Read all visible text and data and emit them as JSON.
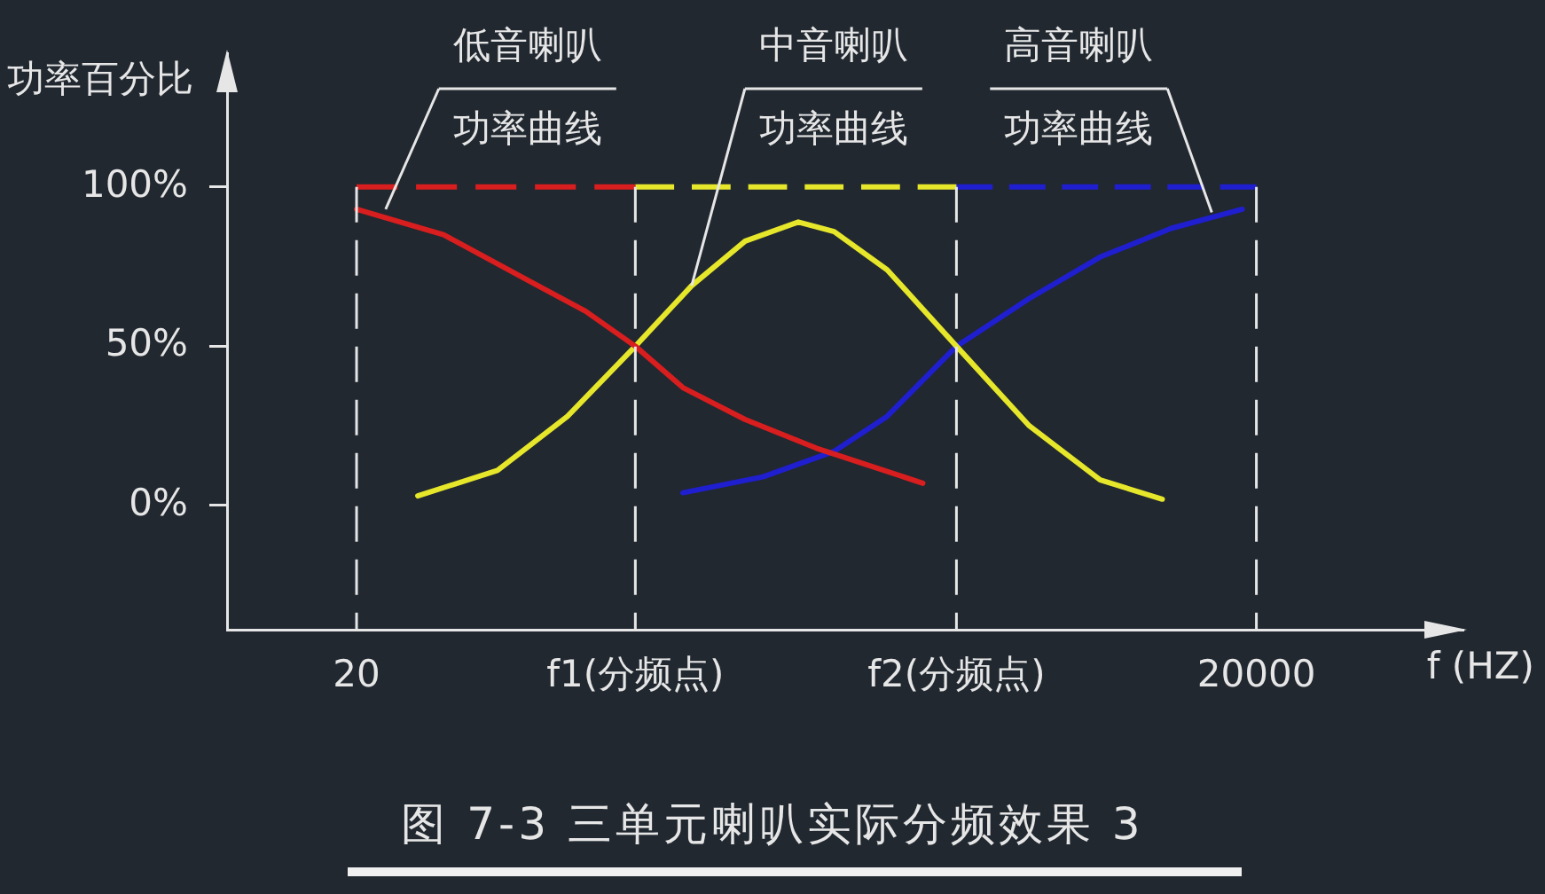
{
  "chart_data": {
    "type": "line",
    "title": "图 7-3  三单元喇叭实际分频效果 3",
    "xlabel": "f (HZ)",
    "ylabel": "功率百分比",
    "log": "x",
    "xlim": [
      7.4,
      98000
    ],
    "xticks": [
      20,
      {
        "value": 170,
        "label": "f1(分频点)"
      },
      {
        "value": 2000,
        "label": "f2(分频点)"
      },
      20000
    ],
    "ylim": [
      -39,
      142
    ],
    "yticks": [
      {
        "value": 0,
        "label": "0%"
      },
      {
        "value": 50,
        "label": "50%"
      },
      {
        "value": 100,
        "label": "100%"
      }
    ],
    "grid": "x",
    "legend": false,
    "marker": "none",
    "line_style": "solid",
    "series": [
      {
        "color": "#d81e1e",
        "x": [
          20,
          39,
          77,
          116,
          170,
          245,
          395,
          682,
          1545
        ],
        "values": [
          93,
          85,
          70,
          61,
          50,
          37,
          27,
          18,
          7
        ]
      },
      {
        "color": "#e6e62a",
        "x": [
          32,
          59,
          101,
          170,
          262,
          395,
          594,
          782,
          1175,
          2000,
          3500,
          6030,
          9710
        ],
        "values": [
          3,
          11,
          28,
          50,
          69,
          83,
          89,
          86,
          74,
          50,
          25,
          8,
          2
        ]
      },
      {
        "color": "#1f1fd0",
        "x": [
          245,
          453,
          782,
          1175,
          2000,
          3500,
          6030,
          10400,
          17950
        ],
        "values": [
          4,
          9,
          17,
          28,
          50,
          65,
          78,
          87,
          93
        ]
      },
      {
        "color": "#d81e1e",
        "line_style": "dashed",
        "x": [
          20,
          170
        ],
        "values": [
          100,
          100
        ]
      },
      {
        "color": "#e6e62a",
        "line_style": "dashed",
        "x": [
          170,
          2000
        ],
        "values": [
          100,
          100
        ]
      },
      {
        "color": "#1f1fd0",
        "line_style": "dashed",
        "x": [
          2000,
          20000
        ],
        "values": [
          100,
          100
        ]
      }
    ],
    "annotations": [
      {
        "text": "低音喇叭功率曲线",
        "x": 25,
        "y": 93
      },
      {
        "text": "中音喇叭功率曲线",
        "x": 262,
        "y": 69
      },
      {
        "text": "高音喇叭功率曲线",
        "x": 14200,
        "y": 92
      }
    ]
  }
}
